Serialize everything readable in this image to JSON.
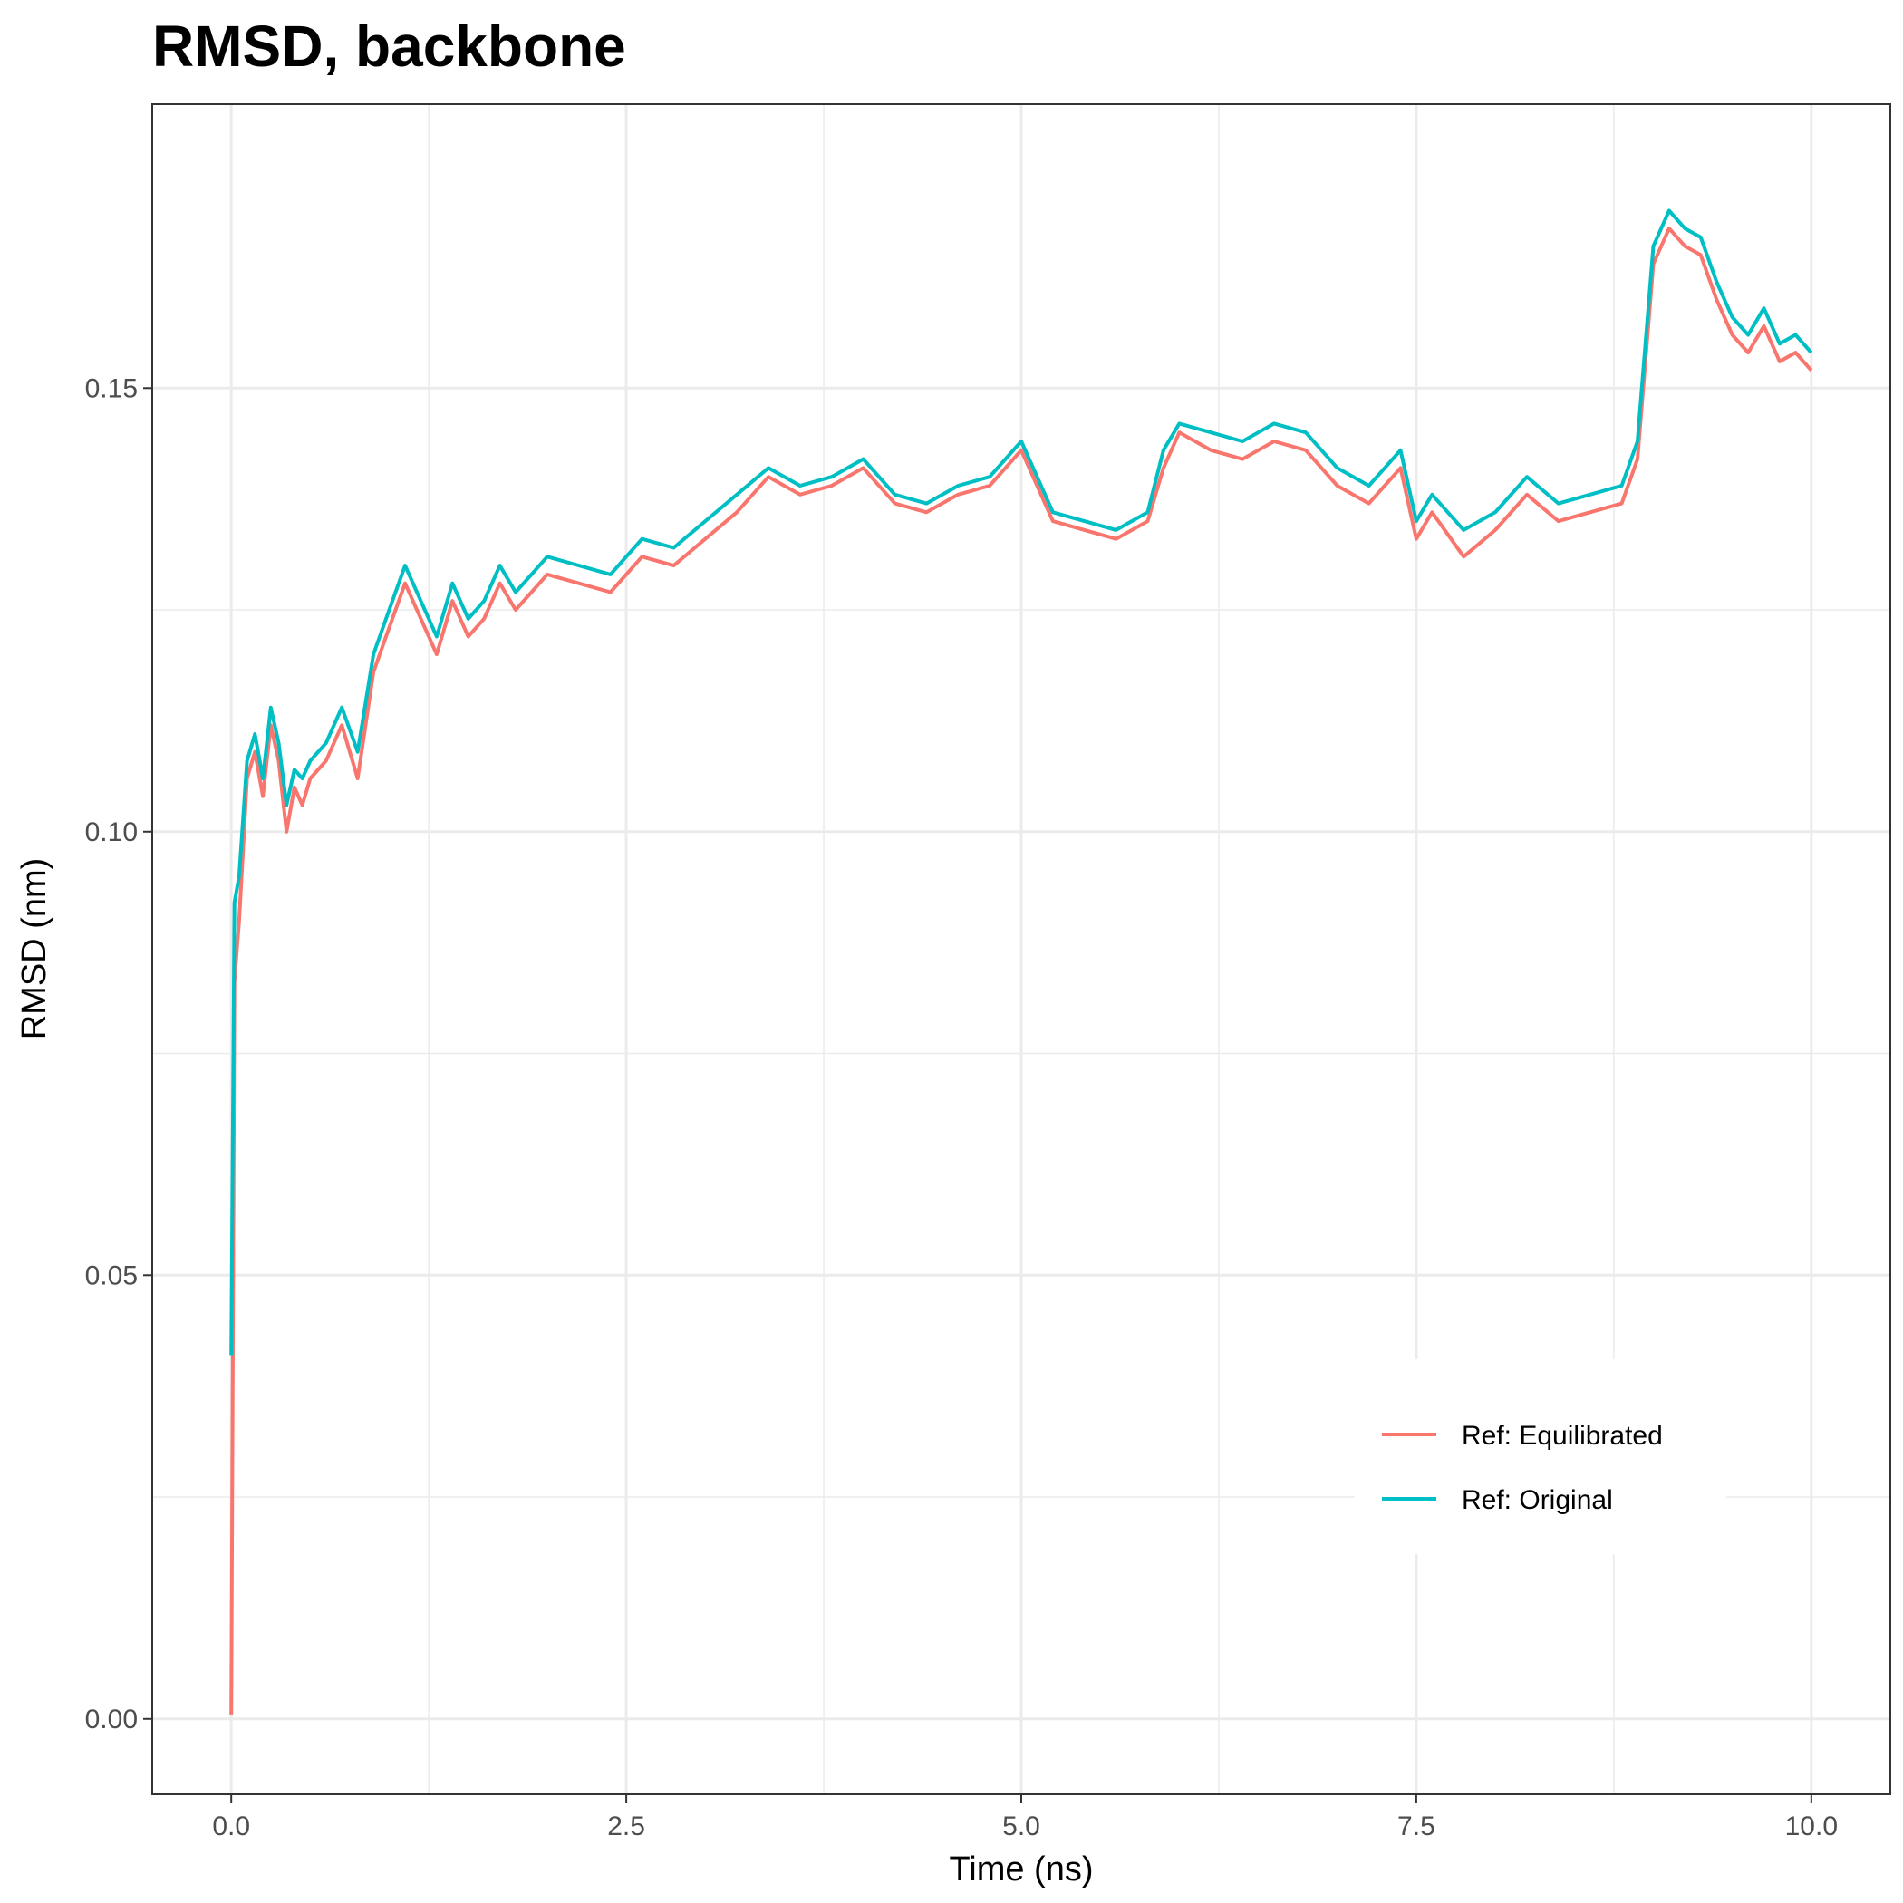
{
  "chart_data": {
    "type": "line",
    "title": "RMSD, backbone",
    "xlabel": "Time (ns)",
    "ylabel": "RMSD (nm)",
    "xlim": [
      -0.5,
      10.5
    ],
    "ylim": [
      -0.0085,
      0.182
    ],
    "x_ticks": [
      0.0,
      2.5,
      5.0,
      7.5,
      10.0
    ],
    "x_tick_labels": [
      "0.0",
      "2.5",
      "5.0",
      "7.5",
      "10.0"
    ],
    "y_ticks": [
      0.0,
      0.05,
      0.1,
      0.15
    ],
    "y_tick_labels": [
      "0.00",
      "0.05",
      "0.10",
      "0.15"
    ],
    "grid": true,
    "legend_position": "bottom-right",
    "series": [
      {
        "name": "Ref: Equilibrated",
        "color": "#F8766D",
        "x": [
          0.0,
          0.02,
          0.05,
          0.1,
          0.15,
          0.2,
          0.25,
          0.3,
          0.35,
          0.4,
          0.45,
          0.5,
          0.6,
          0.7,
          0.8,
          0.9,
          1.0,
          1.1,
          1.2,
          1.3,
          1.4,
          1.5,
          1.6,
          1.7,
          1.8,
          1.9,
          2.0,
          2.2,
          2.4,
          2.6,
          2.8,
          3.0,
          3.2,
          3.4,
          3.6,
          3.8,
          4.0,
          4.2,
          4.4,
          4.6,
          4.8,
          5.0,
          5.2,
          5.4,
          5.6,
          5.8,
          5.9,
          6.0,
          6.2,
          6.4,
          6.6,
          6.8,
          7.0,
          7.2,
          7.4,
          7.5,
          7.6,
          7.8,
          8.0,
          8.2,
          8.4,
          8.6,
          8.8,
          8.9,
          9.0,
          9.1,
          9.2,
          9.3,
          9.4,
          9.5,
          9.6,
          9.7,
          9.8,
          9.9,
          10.0
        ],
        "values": [
          0.0005,
          0.083,
          0.09,
          0.106,
          0.109,
          0.104,
          0.112,
          0.108,
          0.1,
          0.105,
          0.103,
          0.106,
          0.108,
          0.112,
          0.106,
          0.118,
          0.123,
          0.128,
          0.124,
          0.12,
          0.126,
          0.122,
          0.124,
          0.128,
          0.125,
          0.127,
          0.129,
          0.128,
          0.127,
          0.131,
          0.13,
          0.133,
          0.136,
          0.14,
          0.138,
          0.139,
          0.141,
          0.137,
          0.136,
          0.138,
          0.139,
          0.143,
          0.135,
          0.134,
          0.133,
          0.135,
          0.141,
          0.145,
          0.143,
          0.142,
          0.144,
          0.143,
          0.139,
          0.137,
          0.141,
          0.133,
          0.136,
          0.131,
          0.134,
          0.138,
          0.135,
          0.136,
          0.137,
          0.142,
          0.164,
          0.168,
          0.166,
          0.165,
          0.16,
          0.156,
          0.154,
          0.157,
          0.153,
          0.154,
          0.152
        ]
      },
      {
        "name": "Ref: Original",
        "color": "#00BFC4",
        "x": [
          0.0,
          0.02,
          0.05,
          0.1,
          0.15,
          0.2,
          0.25,
          0.3,
          0.35,
          0.4,
          0.45,
          0.5,
          0.6,
          0.7,
          0.8,
          0.9,
          1.0,
          1.1,
          1.2,
          1.3,
          1.4,
          1.5,
          1.6,
          1.7,
          1.8,
          1.9,
          2.0,
          2.2,
          2.4,
          2.6,
          2.8,
          3.0,
          3.2,
          3.4,
          3.6,
          3.8,
          4.0,
          4.2,
          4.4,
          4.6,
          4.8,
          5.0,
          5.2,
          5.4,
          5.6,
          5.8,
          5.9,
          6.0,
          6.2,
          6.4,
          6.6,
          6.8,
          7.0,
          7.2,
          7.4,
          7.5,
          7.6,
          7.8,
          8.0,
          8.2,
          8.4,
          8.6,
          8.8,
          8.9,
          9.0,
          9.1,
          9.2,
          9.3,
          9.4,
          9.5,
          9.6,
          9.7,
          9.8,
          9.9,
          10.0
        ],
        "values": [
          0.041,
          0.092,
          0.095,
          0.108,
          0.111,
          0.106,
          0.114,
          0.11,
          0.103,
          0.107,
          0.106,
          0.108,
          0.11,
          0.114,
          0.109,
          0.12,
          0.125,
          0.13,
          0.126,
          0.122,
          0.128,
          0.124,
          0.126,
          0.13,
          0.127,
          0.129,
          0.131,
          0.13,
          0.129,
          0.133,
          0.132,
          0.135,
          0.138,
          0.141,
          0.139,
          0.14,
          0.142,
          0.138,
          0.137,
          0.139,
          0.14,
          0.144,
          0.136,
          0.135,
          0.134,
          0.136,
          0.143,
          0.146,
          0.145,
          0.144,
          0.146,
          0.145,
          0.141,
          0.139,
          0.143,
          0.135,
          0.138,
          0.134,
          0.136,
          0.14,
          0.137,
          0.138,
          0.139,
          0.144,
          0.166,
          0.17,
          0.168,
          0.167,
          0.162,
          0.158,
          0.156,
          0.159,
          0.155,
          0.156,
          0.154
        ]
      }
    ]
  }
}
